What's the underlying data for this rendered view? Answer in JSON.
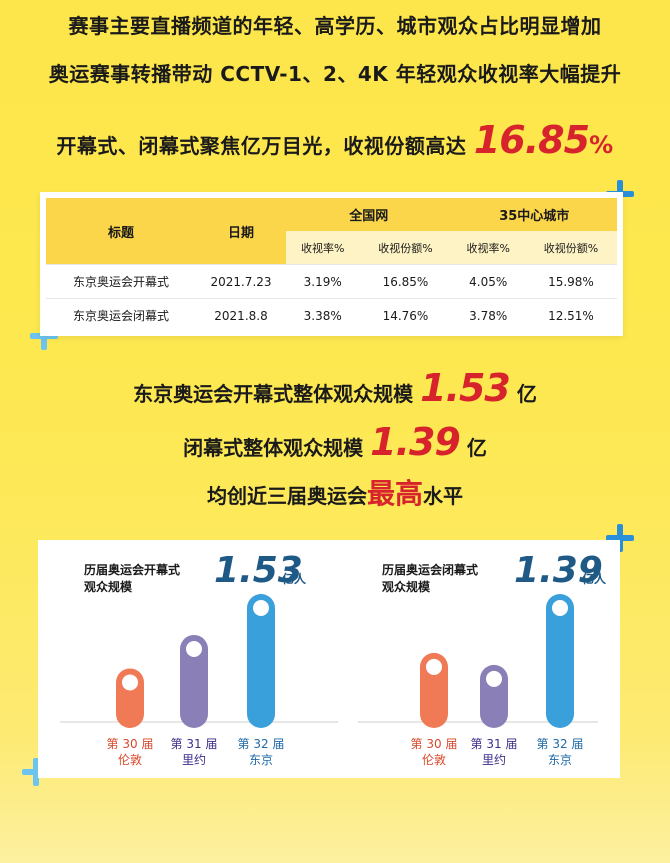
{
  "headlines": {
    "line1": "赛事主要直播频道的年轻、高学历、城市观众占比明显增加",
    "line2": "奥运赛事转播带动 CCTV-1、2、4K 年轻观众收视率大幅提升",
    "line3_text": "开幕式、闭幕式聚焦亿万目光，收视份额高达",
    "line3_value": "16.85",
    "line3_unit": "%"
  },
  "table": {
    "headers": {
      "title": "标题",
      "date": "日期",
      "national": "全国网",
      "cities": "35中心城市"
    },
    "subheaders": [
      "收视率%",
      "收视份额%",
      "收视率%",
      "收视份额%"
    ],
    "rows": [
      {
        "title": "东京奥运会开幕式",
        "date": "2021.7.23",
        "values": [
          "3.19%",
          "16.85%",
          "4.05%",
          "15.98%"
        ]
      },
      {
        "title": "东京奥运会闭幕式",
        "date": "2021.8.8",
        "values": [
          "3.38%",
          "14.76%",
          "3.78%",
          "12.51%"
        ]
      }
    ]
  },
  "stats": {
    "line1_text": "东京奥运会开幕式整体观众规模",
    "line1_value": "1.53",
    "line1_unit": "亿",
    "line2_text": "闭幕式整体观众规模",
    "line2_value": "1.39",
    "line2_unit": "亿",
    "line3_pre": "均创近三届奥运会",
    "line3_emph": "最高",
    "line3_post": "水平"
  },
  "colors": {
    "red": "#d7232b",
    "orange": "#f07a56",
    "purple": "#8a7fb6",
    "blue": "#3aa0dc",
    "navy": "#1f5a86",
    "yellow": "#fde64b"
  },
  "chart_data": [
    {
      "type": "bar",
      "title": "历届奥运会开幕式\n观众规模",
      "peak_label": "1.53",
      "unit": "亿人",
      "categories": [
        {
          "line1": "第 30 届",
          "line2": "伦敦"
        },
        {
          "line1": "第 31 届",
          "line2": "里约"
        },
        {
          "line1": "第 32 届",
          "line2": "东京"
        }
      ],
      "values": [
        0.64,
        1.04,
        1.53
      ],
      "bar_colors": [
        "#f07a56",
        "#8a7fb6",
        "#3aa0dc"
      ]
    },
    {
      "type": "bar",
      "title": "历届奥运会闭幕式\n观众规模",
      "peak_label": "1.39",
      "unit": "亿人",
      "categories": [
        {
          "line1": "第 30 届",
          "line2": "伦敦"
        },
        {
          "line1": "第 31 届",
          "line2": "里约"
        },
        {
          "line1": "第 32 届",
          "line2": "东京"
        }
      ],
      "values": [
        0.75,
        0.62,
        1.39
      ],
      "bar_colors": [
        "#f07a56",
        "#8a7fb6",
        "#3aa0dc"
      ]
    }
  ]
}
